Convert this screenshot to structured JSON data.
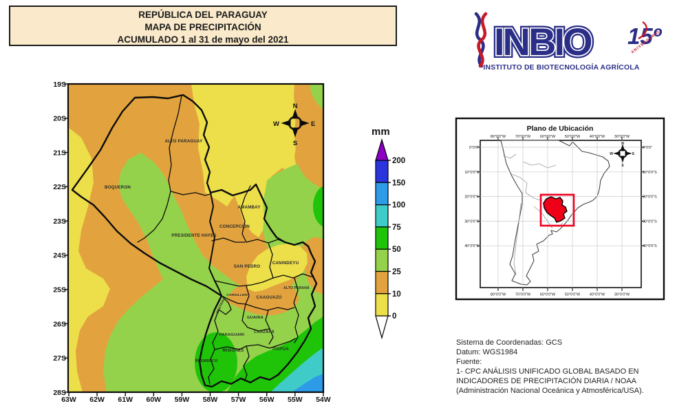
{
  "title_box": {
    "line1": "REPÚBLICA DEL PARAGUAY",
    "line2": "MAPA DE PRECIPITACIÓN",
    "line3": "ACUMULADO 1 al 31 de mayo del 2021"
  },
  "logo": {
    "name": "INBIO",
    "subtitle": "INSTITUTO DE BIOTECNOLOGÍA AGRÍCOLA",
    "anniversary_number": "15º",
    "anniversary_text": "ANIVERSARIO"
  },
  "map": {
    "lat_labels": [
      "19S",
      "20S",
      "21S",
      "22S",
      "23S",
      "24S",
      "25S",
      "26S",
      "27S",
      "28S"
    ],
    "lon_labels": [
      "63W",
      "62W",
      "61W",
      "60W",
      "59W",
      "58W",
      "57W",
      "56W",
      "55W",
      "54W"
    ],
    "departments": [
      "ALTO PARAGUAY",
      "BOQUERON",
      "PRESIDENTE HAYES",
      "CONCEPCIÓN",
      "AMAMBAY",
      "SAN PEDRO",
      "CANINDEYU",
      "CORDILLERA",
      "CENTRAL",
      "CAAGUAZÚ",
      "ALTO PARANÁ",
      "GUAIRA",
      "PARAGUARI",
      "CAAZAPÁ",
      "MISIONES",
      "ÑEEMBUCÚ",
      "ITAPÚA"
    ],
    "compass": [
      "N",
      "E",
      "S",
      "W"
    ]
  },
  "legend": {
    "unit": "mm",
    "values": [
      "200",
      "150",
      "100",
      "75",
      "50",
      "25",
      "10",
      "0"
    ]
  },
  "inset": {
    "title": "Plano de Ubicación",
    "lon_labels": [
      "80°0'0\"W",
      "70°0'0\"W",
      "60°0'0\"W",
      "50°0'0\"W",
      "40°0'0\"W",
      "30°0'0\"W"
    ],
    "lat_labels": [
      "0°0'0\"",
      "10°0'0\"S",
      "20°0'0\"S",
      "30°0'0\"S",
      "40°0'0\"S"
    ],
    "compass": [
      "N",
      "E",
      "S",
      "W"
    ]
  },
  "credits": {
    "line1": "Sistema de Coordenadas: GCS",
    "line2": "Datum: WGS1984",
    "line3": "Fuente:",
    "line4": "1- CPC ANÁLISIS UNIFICADO GLOBAL BASADO EN INDICADORES DE PRECIPITACIÓN DIARIA / NOAA (Administración Nacional Oceánica y Atmosférica/USA)."
  },
  "palette": {
    "yellow": "#EDDF49",
    "orange": "#E2A33E",
    "light_green": "#95D24B",
    "green": "#1FC409",
    "cyan": "#3FCBC7",
    "sky_blue": "#2D9BE8",
    "blue": "#2A35DE",
    "purple": "#8C00C6",
    "title_bg": "#FAEACB",
    "logo_navy": "#2B2E87",
    "logo_red": "#C81926",
    "locator_red": "#F00020"
  }
}
